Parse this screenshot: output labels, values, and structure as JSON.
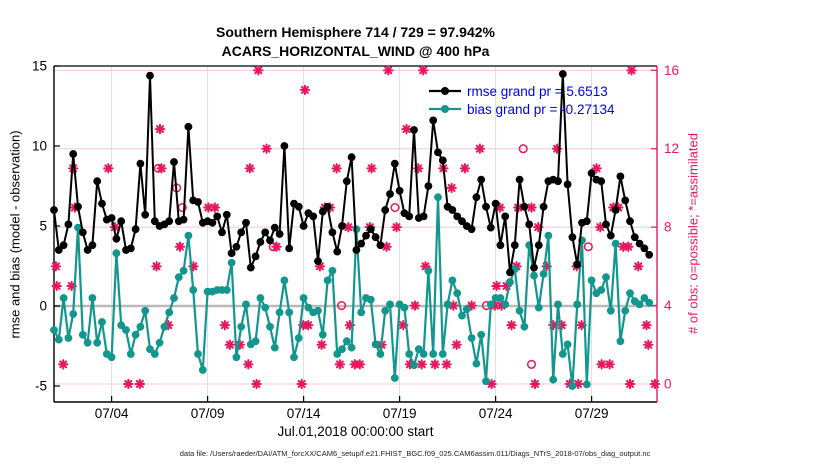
{
  "title": {
    "line1": "Southern Hemisphere 714 / 729 = 97.942%",
    "line2": "ACARS_HORIZONTAL_WIND @ 400 hPa"
  },
  "legend": {
    "rmse_label": "rmse grand pr = 5.6513",
    "bias_label": "bias grand pr = -0.27134",
    "text_color": "#0000ee"
  },
  "footer": "data file: /Users/raeder/DAI/ATM_forcXX/CAM6_setup/f.e21.FHIST_BGC.f09_025.CAM6assim.011/Diags_NTrS_2018-07/obs_diag_output.nc",
  "colors": {
    "rmse": "#000000",
    "bias": "#13968d",
    "counts": "#e8175d",
    "grid_vertical": "#dcdcdc",
    "grid_horizontal": "#f7c8d8",
    "zero_line": "#b9b9b9",
    "frame": "#000000"
  },
  "chart_data": {
    "type": "line",
    "title": "Southern Hemisphere 714 / 729 = 97.942% | ACARS_HORIZONTAL_WIND @ 400 hPa",
    "xlabel": "Jul.01,2018 00:00:00 start",
    "ylabel_left": "rmse and bias (model - observation)",
    "ylabel_right": "# of obs: o=possible; *=assimilated",
    "legend_position": "top-right-inside",
    "grid": true,
    "time_step_days": 0.25,
    "x_days_total": 31.4,
    "x_ticks": [
      {
        "t": 3,
        "label": "07/04"
      },
      {
        "t": 8,
        "label": "07/09"
      },
      {
        "t": 13,
        "label": "07/14"
      },
      {
        "t": 18,
        "label": "07/19"
      },
      {
        "t": 23,
        "label": "07/24"
      },
      {
        "t": 28,
        "label": "07/29"
      }
    ],
    "ylim_left": [
      -6,
      15
    ],
    "yticks_left": [
      -5,
      0,
      5,
      10,
      15
    ],
    "ylim_right": [
      -0.92,
      16.22
    ],
    "yticks_right": [
      0,
      4,
      8,
      12,
      16
    ],
    "series": [
      {
        "name": "rmse",
        "grand_mean": 5.6513,
        "values": [
          6.0,
          3.5,
          3.8,
          5.1,
          9.5,
          6.2,
          4.6,
          3.5,
          3.8,
          7.8,
          6.4,
          5.4,
          5.5,
          4.2,
          5.3,
          3.5,
          3.6,
          4.8,
          8.9,
          5.7,
          14.4,
          5.3,
          5.0,
          5.1,
          5.3,
          9.0,
          5.3,
          5.4,
          11.2,
          6.6,
          6.5,
          5.2,
          5.3,
          5.2,
          5.6,
          4.6,
          5.7,
          3.3,
          3.7,
          4.6,
          5.2,
          2.4,
          3.1,
          4.0,
          4.6,
          4.1,
          4.9,
          4.5,
          10.0,
          3.6,
          6.4,
          6.2,
          5.0,
          5.8,
          5.6,
          2.8,
          5.9,
          6.2,
          4.6,
          3.4,
          5.0,
          7.8,
          9.3,
          3.5,
          3.9,
          4.4,
          4.8,
          4.3,
          3.8,
          6.0,
          7.0,
          8.9,
          7.2,
          5.8,
          5.6,
          11.0,
          5.5,
          5.6,
          7.5,
          11.6,
          9.6,
          9.1,
          6.2,
          6.0,
          5.6,
          5.3,
          5.0,
          4.8,
          6.8,
          7.9,
          6.2,
          4.9,
          6.4,
          3.8,
          5.6,
          2.1,
          3.8,
          7.9,
          6.2,
          5.1,
          2.4,
          3.8,
          6.2,
          7.8,
          7.9,
          7.8,
          14.5,
          7.6,
          4.3,
          2.6,
          5.2,
          5.3,
          8.3,
          7.9,
          7.8,
          5.1,
          4.4,
          6.0,
          8.1,
          6.6,
          5.3,
          4.3,
          3.9,
          3.6,
          3.2
        ]
      },
      {
        "name": "bias",
        "grand_mean": -0.27134,
        "values": [
          -1.5,
          -2.1,
          0.5,
          -2.0,
          -0.5,
          4.9,
          -1.8,
          -2.3,
          0.5,
          -2.3,
          -1.0,
          -3.0,
          -3.2,
          3.3,
          -1.2,
          -1.5,
          -3.0,
          -1.8,
          -1.3,
          -0.3,
          -2.7,
          -3.0,
          -2.3,
          -1.3,
          -0.4,
          0.5,
          1.8,
          2.2,
          4.4,
          1.0,
          -3.0,
          -4.0,
          0.9,
          0.9,
          1.0,
          1.0,
          1.0,
          2.7,
          -3.2,
          -1.3,
          0.1,
          -2.4,
          -2.2,
          0.5,
          -0.1,
          -1.3,
          -2.6,
          -0.4,
          1.6,
          -0.4,
          -3.2,
          -2.0,
          0.5,
          -0.1,
          -0.4,
          -0.3,
          -1.8,
          1.6,
          2.2,
          -3.0,
          -2.7,
          -2.2,
          -2.6,
          4.8,
          -0.4,
          0.5,
          0.4,
          -2.4,
          -3.0,
          -0.3,
          0.1,
          -4.5,
          0.1,
          -0.1,
          -3.0,
          -3.7,
          -2.7,
          -3.0,
          2.2,
          -3.0,
          6.8,
          -3.0,
          0.1,
          1.6,
          0.8,
          -0.6,
          -0.2,
          -2.0,
          -3.6,
          -1.8,
          -4.7,
          0.1,
          0.5,
          0.5,
          0.1,
          1.5,
          2.3,
          -0.3,
          -1.3,
          3.8,
          1.9,
          -0.1,
          2.0,
          4.4,
          -4.6,
          0.1,
          -3.0,
          -2.4,
          -5.0,
          0.1,
          4.1,
          -4.9,
          1.6,
          0.8,
          1.0,
          1.8,
          -0.3,
          3.9,
          -2.2,
          -0.3,
          0.8,
          0.3,
          0.1,
          0.5,
          0.2
        ]
      }
    ],
    "counts_assimilated": {
      "marker": "asterisk",
      "points": [
        [
          0.1,
          6
        ],
        [
          0.14,
          5
        ],
        [
          0.48,
          1
        ],
        [
          0.92,
          5
        ],
        [
          1.0,
          11
        ],
        [
          1.09,
          9
        ],
        [
          2.83,
          11
        ],
        [
          3.17,
          8
        ],
        [
          3.87,
          0
        ],
        [
          4.47,
          0
        ],
        [
          5.34,
          6
        ],
        [
          5.52,
          13
        ],
        [
          5.6,
          11
        ],
        [
          5.95,
          3
        ],
        [
          6.56,
          7
        ],
        [
          7.26,
          6
        ],
        [
          8.04,
          9
        ],
        [
          8.38,
          9
        ],
        [
          8.9,
          3
        ],
        [
          9.16,
          2
        ],
        [
          9.68,
          2
        ],
        [
          10.12,
          1
        ],
        [
          10.2,
          11
        ],
        [
          10.55,
          0
        ],
        [
          10.64,
          16
        ],
        [
          11.07,
          12
        ],
        [
          11.59,
          7
        ],
        [
          12.9,
          0
        ],
        [
          12.98,
          3
        ],
        [
          13.07,
          15
        ],
        [
          13.24,
          3
        ],
        [
          13.85,
          6
        ],
        [
          13.94,
          2
        ],
        [
          14.11,
          9
        ],
        [
          14.37,
          9
        ],
        [
          14.72,
          11
        ],
        [
          14.89,
          1
        ],
        [
          15.33,
          8
        ],
        [
          15.41,
          3
        ],
        [
          15.67,
          1
        ],
        [
          15.93,
          1
        ],
        [
          16.45,
          8
        ],
        [
          16.54,
          11
        ],
        [
          17.06,
          2
        ],
        [
          17.32,
          7
        ],
        [
          17.41,
          16
        ],
        [
          17.84,
          8
        ],
        [
          18.19,
          3
        ],
        [
          18.36,
          13
        ],
        [
          18.54,
          1
        ],
        [
          18.8,
          4
        ],
        [
          18.97,
          11
        ],
        [
          19.15,
          1
        ],
        [
          19.23,
          16
        ],
        [
          19.35,
          6
        ],
        [
          19.84,
          1
        ],
        [
          20.28,
          11
        ],
        [
          20.45,
          1
        ],
        [
          20.71,
          10
        ],
        [
          20.8,
          4
        ],
        [
          20.97,
          2
        ],
        [
          21.4,
          11
        ],
        [
          21.75,
          4
        ],
        [
          22.18,
          12
        ],
        [
          22.79,
          0
        ],
        [
          22.96,
          4
        ],
        [
          23.05,
          5
        ],
        [
          23.22,
          9
        ],
        [
          23.31,
          4
        ],
        [
          23.57,
          5
        ],
        [
          23.83,
          3
        ],
        [
          24.09,
          6
        ],
        [
          24.18,
          9
        ],
        [
          24.87,
          9
        ],
        [
          25.05,
          0
        ],
        [
          25.22,
          8
        ],
        [
          25.66,
          6
        ],
        [
          26.01,
          3
        ],
        [
          26.2,
          12
        ],
        [
          26.44,
          3
        ],
        [
          26.87,
          0
        ],
        [
          27.22,
          6
        ],
        [
          27.3,
          0
        ],
        [
          27.48,
          3
        ],
        [
          28.26,
          11
        ],
        [
          28.45,
          8
        ],
        [
          28.52,
          1
        ],
        [
          28.94,
          1
        ],
        [
          29.13,
          9
        ],
        [
          29.39,
          9
        ],
        [
          29.65,
          7
        ],
        [
          29.91,
          7
        ],
        [
          30.0,
          0
        ],
        [
          30.08,
          16
        ],
        [
          30.43,
          6
        ],
        [
          30.86,
          3
        ],
        [
          30.95,
          2
        ],
        [
          31.3,
          0
        ]
      ]
    },
    "counts_possible": {
      "marker": "open-circle",
      "points": [
        [
          5.43,
          11
        ],
        [
          6.39,
          10
        ],
        [
          6.68,
          9
        ],
        [
          11.42,
          7
        ],
        [
          14.98,
          4
        ],
        [
          17.76,
          9
        ],
        [
          22.52,
          4
        ],
        [
          24.44,
          12
        ],
        [
          24.87,
          1
        ],
        [
          27.83,
          7
        ]
      ]
    }
  }
}
